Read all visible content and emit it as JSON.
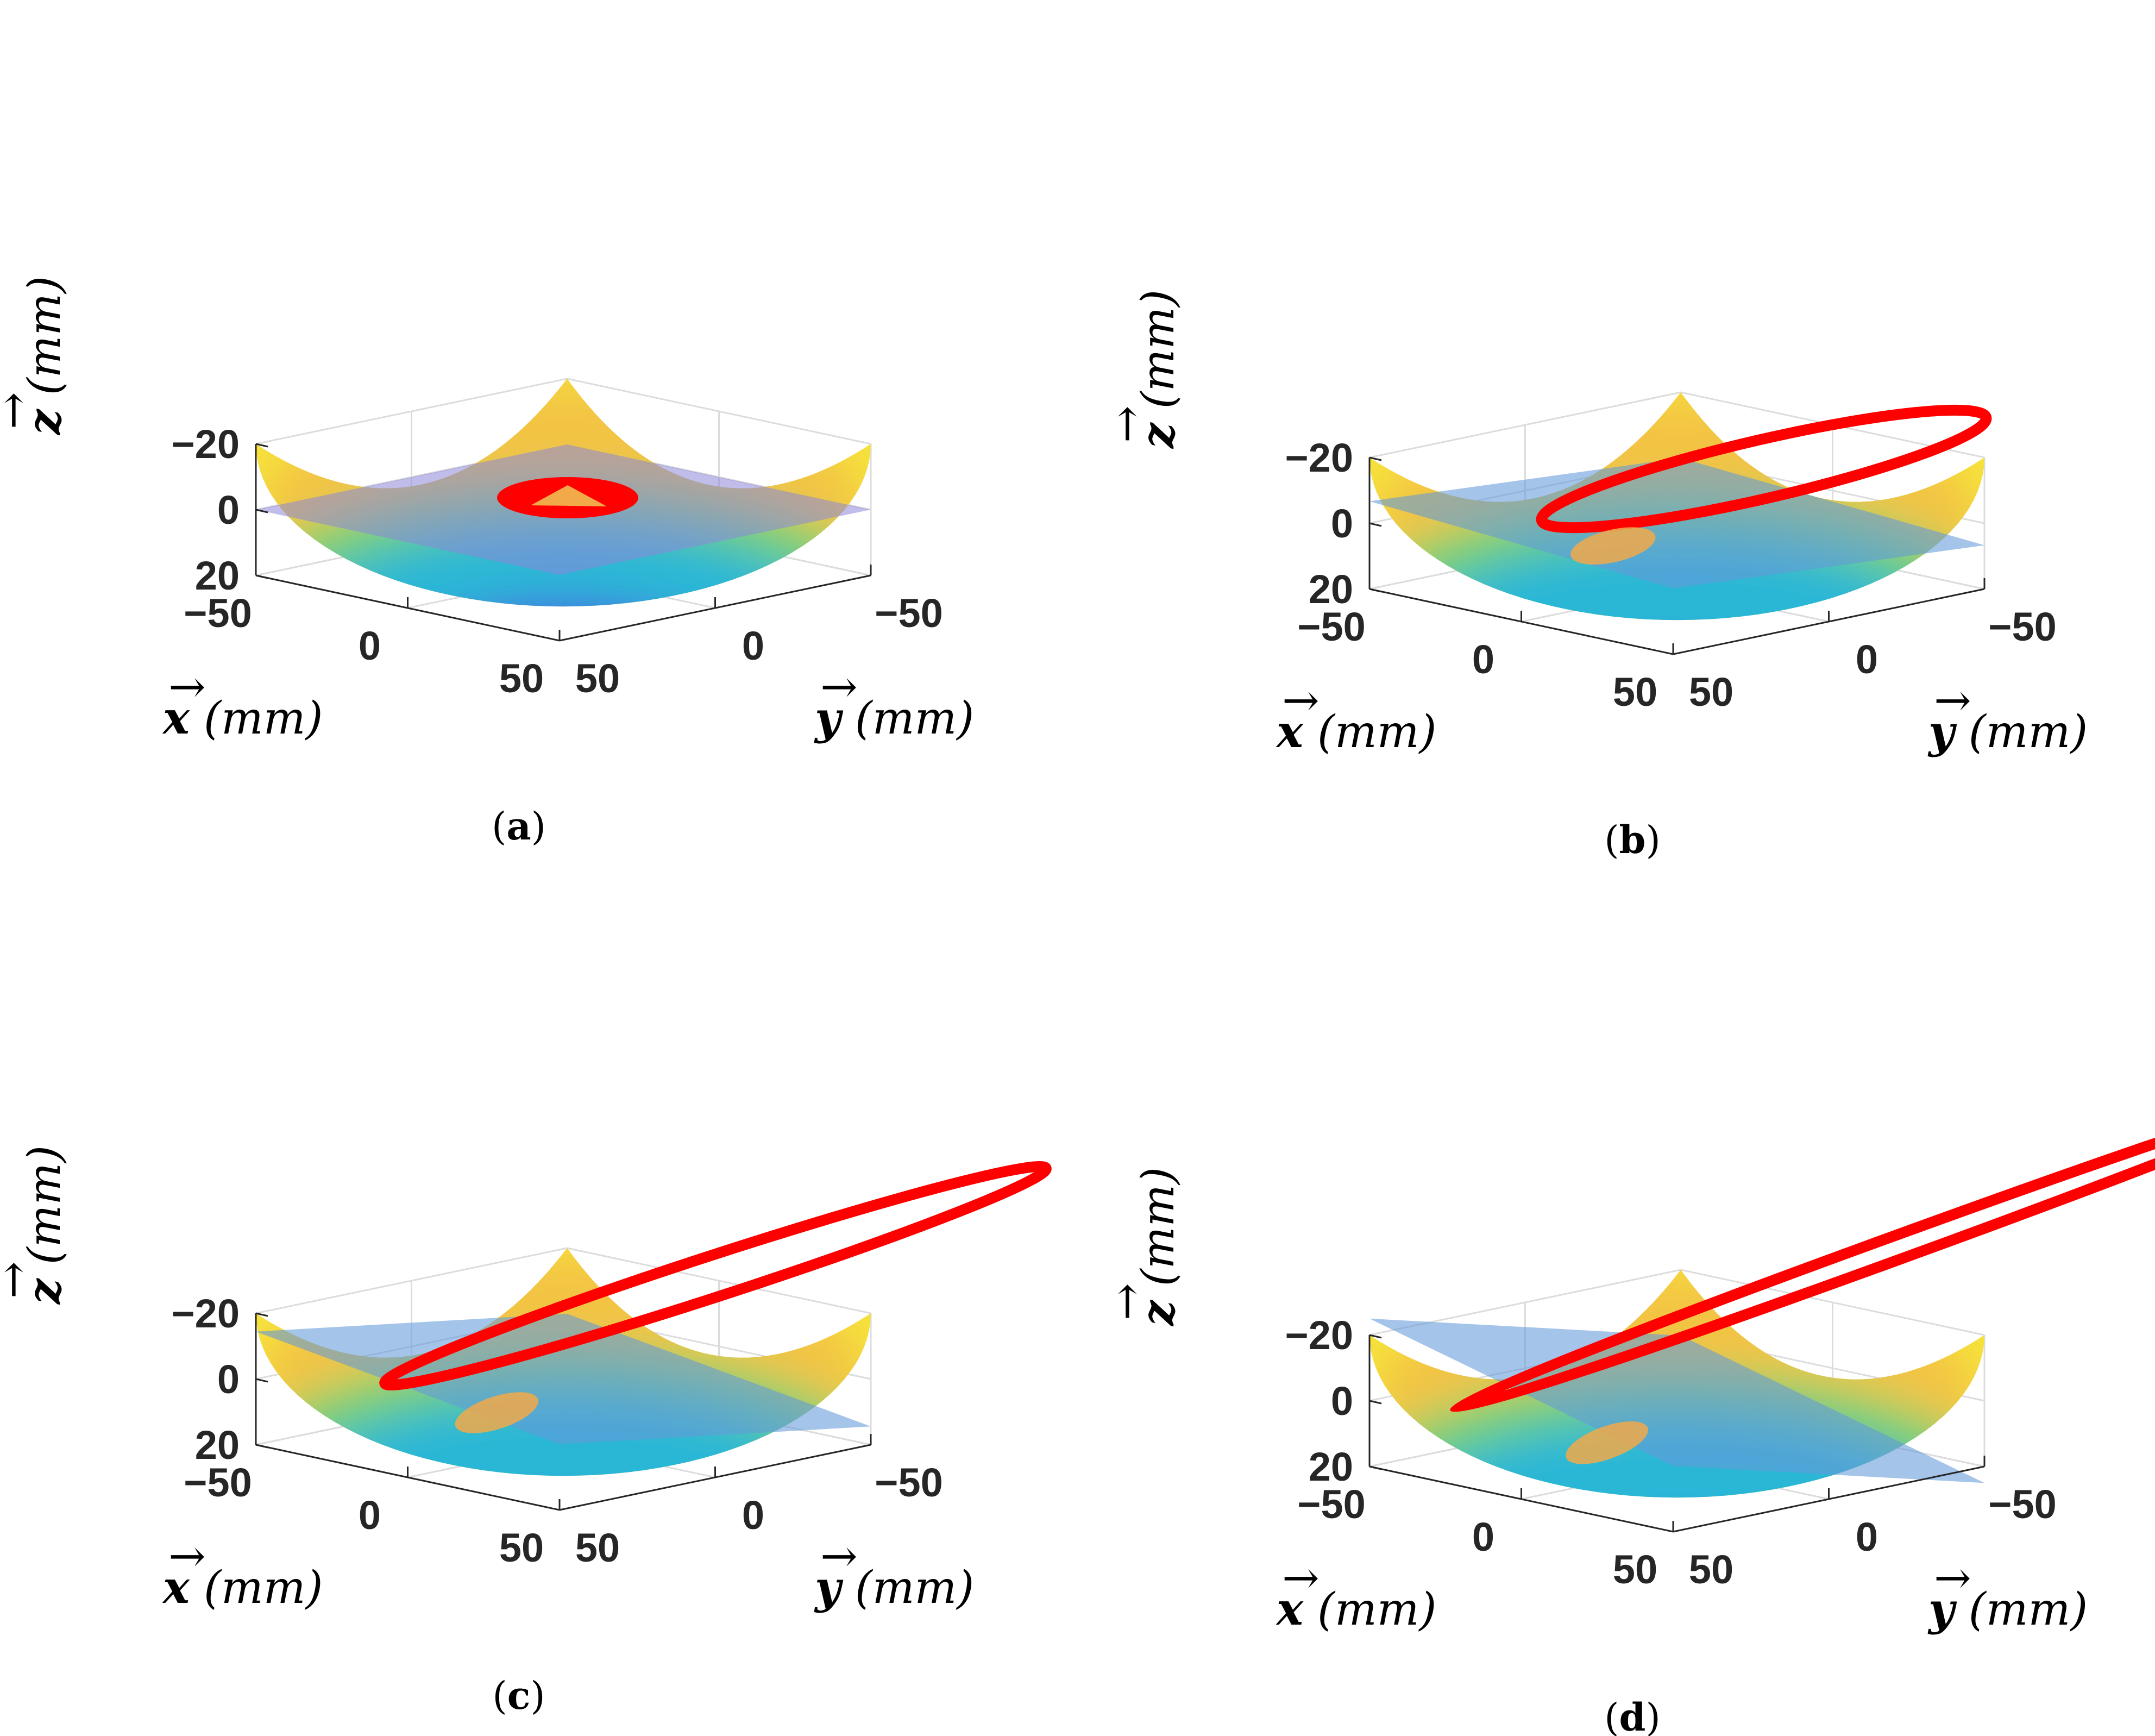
{
  "figure": {
    "panel_labels": [
      "a",
      "b",
      "c",
      "d"
    ]
  },
  "colors": {
    "surface_low": "#4a3fe6",
    "surface_mid": "#2bb7d6",
    "surface_green": "#5ed480",
    "surface_high": "#f6e33b",
    "surface_edge": "#f1a94a",
    "plane": "#8d86db",
    "intersection": "#ff0000",
    "grid": "#dcdcdc",
    "axis": "#262626"
  },
  "chart_data": [
    {
      "type": "surface",
      "panel": "a",
      "surface": "paraboloid",
      "xlabel": "x (mm)",
      "ylabel": "y (mm)",
      "zlabel": "z (mm)",
      "xlim": [
        -50,
        50
      ],
      "ylim": [
        -50,
        50
      ],
      "zlim": [
        -20,
        20
      ],
      "x_ticks": [
        "-50",
        "0",
        "50"
      ],
      "y_ticks": [
        "-50",
        "0",
        "50"
      ],
      "z_ticks": [
        "-20",
        "0",
        "20"
      ],
      "plane": {
        "tilt_deg": 0,
        "description": "horizontal"
      },
      "intersection": "circle"
    },
    {
      "type": "surface",
      "panel": "b",
      "surface": "paraboloid",
      "xlabel": "x (mm)",
      "ylabel": "y (mm)",
      "zlabel": "z (mm)",
      "xlim": [
        -50,
        50
      ],
      "ylim": [
        -50,
        50
      ],
      "zlim": [
        -20,
        20
      ],
      "x_ticks": [
        "-50",
        "0",
        "50"
      ],
      "y_ticks": [
        "-50",
        "0",
        "50"
      ],
      "z_ticks": [
        "-20",
        "0",
        "20"
      ],
      "plane": {
        "tilt_deg": 15
      },
      "intersection": "ellipse"
    },
    {
      "type": "surface",
      "panel": "c",
      "surface": "paraboloid",
      "xlabel": "x (mm)",
      "ylabel": "y (mm)",
      "zlabel": "z (mm)",
      "xlim": [
        -50,
        50
      ],
      "ylim": [
        -50,
        50
      ],
      "zlim": [
        -20,
        20
      ],
      "x_ticks": [
        "-50",
        "0",
        "50"
      ],
      "y_ticks": [
        "-50",
        "0",
        "50"
      ],
      "z_ticks": [
        "-20",
        "0",
        "20"
      ],
      "plane": {
        "tilt_deg": 30
      },
      "intersection": "elongated ellipse"
    },
    {
      "type": "surface",
      "panel": "d",
      "surface": "paraboloid",
      "xlabel": "x (mm)",
      "ylabel": "y (mm)",
      "zlabel": "z (mm)",
      "xlim": [
        -50,
        50
      ],
      "ylim": [
        -50,
        50
      ],
      "zlim": [
        -20,
        20
      ],
      "x_ticks": [
        "-50",
        "0",
        "50"
      ],
      "y_ticks": [
        "-50",
        "0",
        "50"
      ],
      "z_ticks": [
        "-20",
        "0",
        "20"
      ],
      "plane": {
        "tilt_deg": 45
      },
      "intersection": "parabola"
    }
  ]
}
